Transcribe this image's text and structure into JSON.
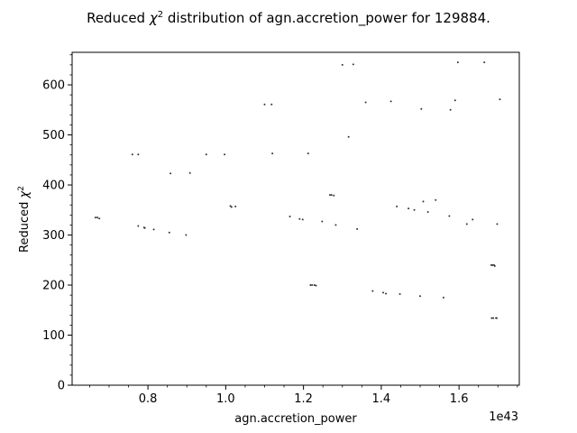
{
  "chart_data": {
    "type": "scatter",
    "title_prefix": "Reduced ",
    "title_symbol": "χ",
    "title_sup": "2",
    "title_suffix": " distribution of agn.accretion_power for 129884.",
    "xlabel": "agn.accretion_power",
    "ylabel_prefix": "Reduced ",
    "ylabel_symbol": "χ",
    "ylabel_sup": "2",
    "x_offset_label": "1e43",
    "xlim": [
      0.605,
      1.755
    ],
    "ylim": [
      0,
      665
    ],
    "xticks": [
      "0.8",
      "1.0",
      "1.2",
      "1.4",
      "1.6"
    ],
    "yticks": [
      "0",
      "100",
      "200",
      "300",
      "400",
      "500",
      "600"
    ],
    "marker_color": "#333333",
    "x": [
      0.665,
      0.67,
      0.675,
      0.775,
      0.79,
      0.792,
      0.815,
      0.855,
      0.898,
      0.76,
      0.775,
      0.858,
      0.908,
      0.95,
      0.997,
      1.012,
      1.015,
      1.025,
      1.1,
      1.118,
      1.12,
      1.165,
      1.19,
      1.198,
      1.212,
      1.218,
      1.222,
      1.228,
      1.232,
      1.248,
      1.268,
      1.272,
      1.278,
      1.283,
      1.3,
      1.316,
      1.328,
      1.338,
      1.36,
      1.378,
      1.405,
      1.412,
      1.425,
      1.44,
      1.448,
      1.47,
      1.485,
      1.5,
      1.503,
      1.508,
      1.52,
      1.54,
      1.56,
      1.575,
      1.578,
      1.59,
      1.597,
      1.62,
      1.635,
      1.665,
      1.683,
      1.686,
      1.69,
      1.692,
      1.684,
      1.688,
      1.695,
      1.697,
      1.698,
      1.705
    ],
    "y": [
      335,
      335,
      333,
      318,
      315,
      314,
      311,
      305,
      300,
      461,
      461,
      423,
      424,
      461,
      461,
      358,
      356,
      357,
      561,
      561,
      463,
      337,
      332,
      331,
      463,
      200,
      200,
      200,
      199,
      327,
      380,
      380,
      379,
      320,
      640,
      496,
      641,
      312,
      565,
      188,
      185,
      183,
      567,
      357,
      182,
      353,
      350,
      178,
      552,
      367,
      346,
      370,
      175,
      338,
      550,
      569,
      645,
      322,
      331,
      645,
      240,
      240,
      240,
      238,
      134,
      134,
      134,
      134,
      322,
      571
    ]
  }
}
